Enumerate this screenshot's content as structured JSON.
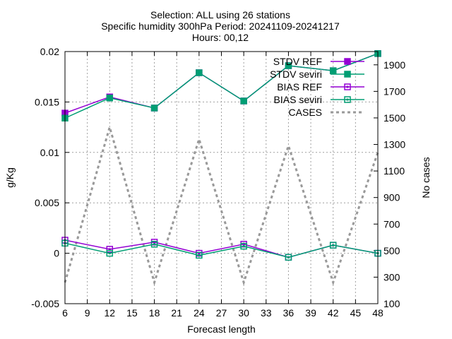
{
  "chart_data": {
    "type": "line",
    "title_lines": [
      "Selection: ALL using    26 stations",
      "Specific humidity 300hPa   Period: 20241109-20241217",
      "Hours: 00,12"
    ],
    "xlabel": "Forecast length",
    "ylabel": "g/Kg",
    "y2label": "No cases",
    "x_ticks": [
      6,
      9,
      12,
      15,
      18,
      21,
      24,
      27,
      30,
      33,
      36,
      39,
      42,
      45,
      48
    ],
    "xlim": [
      6,
      48
    ],
    "ylim": [
      -0.005,
      0.02
    ],
    "y_ticks": [
      -0.005,
      0,
      0.005,
      0.01,
      0.015,
      0.02
    ],
    "y_tick_labels": [
      "-0.005",
      "0",
      "0.005",
      "0.01",
      "0.015",
      "0.02"
    ],
    "y2lim": [
      100,
      2000
    ],
    "y2_ticks": [
      100,
      300,
      500,
      700,
      900,
      1100,
      1300,
      1500,
      1700,
      1900
    ],
    "grid": true,
    "legend_position": "top-right",
    "series": [
      {
        "name": "STDV REF",
        "axis": "y",
        "color": "#9400d3",
        "marker": "filled-square",
        "x": [
          6,
          12,
          18,
          24,
          30,
          36,
          42,
          48
        ],
        "y": [
          0.0139,
          0.0155,
          0.0144,
          0.0179,
          0.0151,
          0.0186,
          0.0181,
          0.0198
        ]
      },
      {
        "name": "STDV seviri",
        "axis": "y",
        "color": "#009e73",
        "marker": "filled-square",
        "x": [
          6,
          12,
          18,
          24,
          30,
          36,
          42,
          48
        ],
        "y": [
          0.0134,
          0.0154,
          0.0144,
          0.0179,
          0.0151,
          0.0186,
          0.0181,
          0.0198
        ]
      },
      {
        "name": "BIAS REF",
        "axis": "y",
        "color": "#9400d3",
        "marker": "open-square",
        "x": [
          6,
          12,
          18,
          24,
          30,
          36,
          42,
          48
        ],
        "y": [
          0.0013,
          0.0004,
          0.0011,
          0.0,
          0.0009,
          -0.0004,
          0.0008,
          0.0
        ]
      },
      {
        "name": "BIAS seviri",
        "axis": "y",
        "color": "#009e73",
        "marker": "open-square",
        "x": [
          6,
          12,
          18,
          24,
          30,
          36,
          42,
          48
        ],
        "y": [
          0.001,
          0.0,
          0.0009,
          -0.0002,
          0.0007,
          -0.0004,
          0.0008,
          0.0
        ]
      },
      {
        "name": "CASES",
        "axis": "y2",
        "color": "#999999",
        "style": "dashed",
        "x": [
          6,
          12,
          18,
          24,
          30,
          36,
          42,
          48
        ],
        "y": [
          260,
          1430,
          260,
          1340,
          260,
          1290,
          260,
          1240
        ]
      }
    ]
  }
}
